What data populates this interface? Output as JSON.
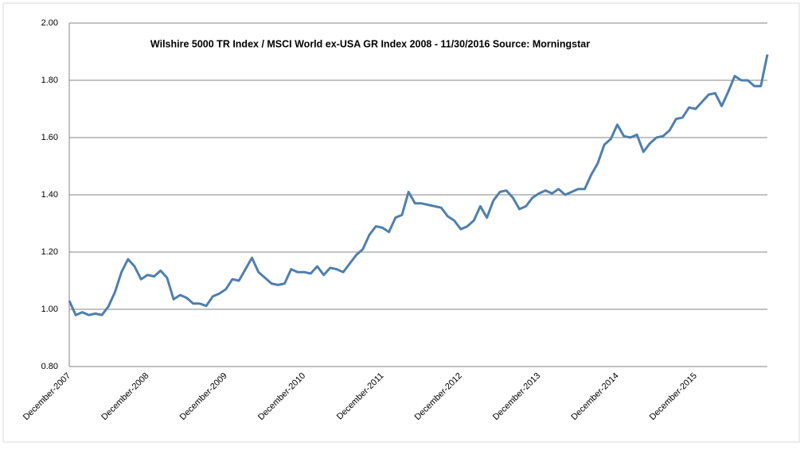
{
  "chart_data": {
    "type": "line",
    "title": "Wilshire 5000 TR Index / MSCI World  ex-USA GR Index  2008  - 11/30/2016   Source:  Morningstar",
    "categories": [
      "December-2007",
      null,
      null,
      null,
      null,
      null,
      null,
      null,
      null,
      null,
      null,
      null,
      "December-2008",
      null,
      null,
      null,
      null,
      null,
      null,
      null,
      null,
      null,
      null,
      null,
      "December-2009",
      null,
      null,
      null,
      null,
      null,
      null,
      null,
      null,
      null,
      null,
      null,
      "December-2010",
      null,
      null,
      null,
      null,
      null,
      null,
      null,
      null,
      null,
      null,
      null,
      "December-2011",
      null,
      null,
      null,
      null,
      null,
      null,
      null,
      null,
      null,
      null,
      null,
      "December-2012",
      null,
      null,
      null,
      null,
      null,
      null,
      null,
      null,
      null,
      null,
      null,
      "December-2013",
      null,
      null,
      null,
      null,
      null,
      null,
      null,
      null,
      null,
      null,
      null,
      "December-2014",
      null,
      null,
      null,
      null,
      null,
      null,
      null,
      null,
      null,
      null,
      null,
      "December-2015",
      null,
      null,
      null,
      null,
      null,
      null,
      null,
      null,
      null,
      null,
      null
    ],
    "values": [
      1.03,
      0.98,
      0.99,
      0.98,
      0.985,
      0.98,
      1.01,
      1.06,
      1.13,
      1.175,
      1.15,
      1.105,
      1.12,
      1.115,
      1.135,
      1.11,
      1.035,
      1.05,
      1.04,
      1.02,
      1.02,
      1.012,
      1.045,
      1.055,
      1.07,
      1.105,
      1.1,
      1.14,
      1.18,
      1.13,
      1.11,
      1.09,
      1.085,
      1.09,
      1.14,
      1.13,
      1.13,
      1.125,
      1.15,
      1.12,
      1.145,
      1.14,
      1.13,
      1.16,
      1.19,
      1.21,
      1.26,
      1.29,
      1.285,
      1.27,
      1.32,
      1.33,
      1.41,
      1.37,
      1.37,
      1.365,
      1.36,
      1.355,
      1.325,
      1.31,
      1.28,
      1.29,
      1.31,
      1.36,
      1.32,
      1.38,
      1.41,
      1.415,
      1.39,
      1.35,
      1.36,
      1.39,
      1.405,
      1.415,
      1.405,
      1.42,
      1.4,
      1.41,
      1.42,
      1.42,
      1.47,
      1.51,
      1.575,
      1.595,
      1.645,
      1.605,
      1.6,
      1.61,
      1.55,
      1.58,
      1.6,
      1.605,
      1.625,
      1.665,
      1.67,
      1.705,
      1.7,
      1.725,
      1.75,
      1.755,
      1.71,
      1.76,
      1.815,
      1.8,
      1.8,
      1.78,
      1.78,
      1.89
    ],
    "color": "#4f7fae",
    "ylim": [
      0.8,
      2.0
    ],
    "yticks": [
      {
        "value": 0.8,
        "label": "0.80"
      },
      {
        "value": 1.0,
        "label": "1.00"
      },
      {
        "value": 1.2,
        "label": "1.20"
      },
      {
        "value": 1.4,
        "label": "1.40"
      },
      {
        "value": 1.6,
        "label": "1.60"
      },
      {
        "value": 1.8,
        "label": "1.80"
      },
      {
        "value": 2.0,
        "label": "2.00"
      }
    ],
    "grid": true
  }
}
